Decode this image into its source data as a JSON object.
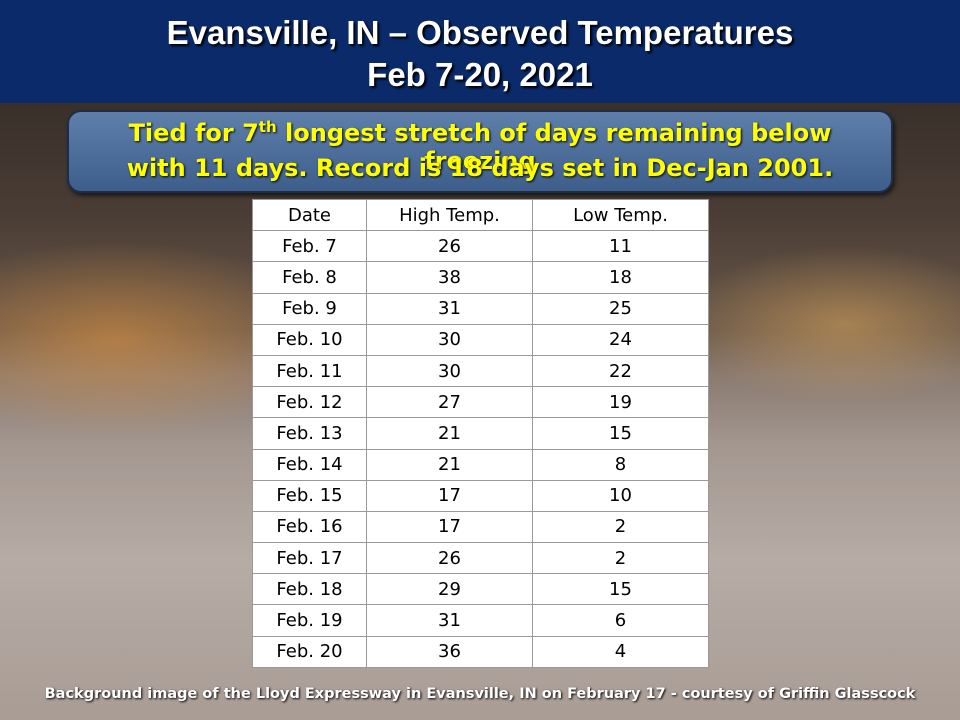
{
  "header": {
    "title_line1": "Evansville, IN – Observed Temperatures",
    "title_line2": "Feb 7-20, 2021"
  },
  "callout": {
    "line1_start": "Tied for 7",
    "line1_sup": "th",
    "line1_end": " longest stretch of days remaining below freezing",
    "line2": "with 11 days. Record is 18 days set in Dec-Jan 2001."
  },
  "table": {
    "columns": [
      "Date",
      "High Temp.",
      "Low Temp."
    ],
    "rows": [
      [
        "Feb. 7",
        26,
        11
      ],
      [
        "Feb. 8",
        38,
        18
      ],
      [
        "Feb. 9",
        31,
        25
      ],
      [
        "Feb. 10",
        30,
        24
      ],
      [
        "Feb. 11",
        30,
        22
      ],
      [
        "Feb. 12",
        27,
        19
      ],
      [
        "Feb. 13",
        21,
        15
      ],
      [
        "Feb. 14",
        21,
        8
      ],
      [
        "Feb. 15",
        17,
        10
      ],
      [
        "Feb. 16",
        17,
        2
      ],
      [
        "Feb. 17",
        26,
        2
      ],
      [
        "Feb. 18",
        29,
        15
      ],
      [
        "Feb. 19",
        31,
        6
      ],
      [
        "Feb. 20",
        36,
        4
      ]
    ]
  },
  "footer": {
    "caption": "Background  image of the Lloyd Expressway in Evansville, IN on February 17 - courtesy of Griffin Glasscock"
  }
}
